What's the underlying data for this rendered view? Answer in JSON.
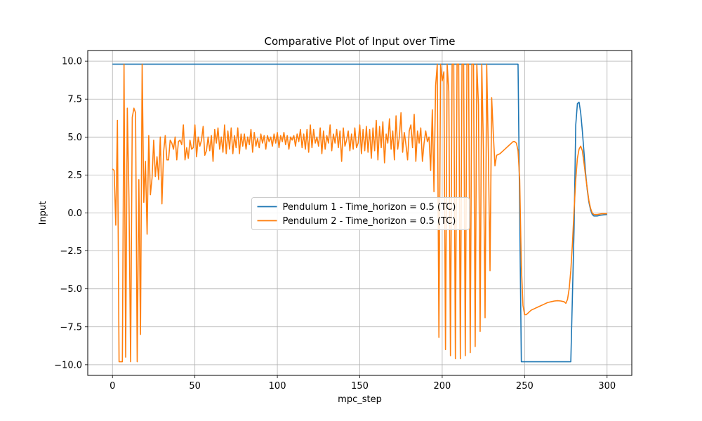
{
  "chart_data": {
    "type": "line",
    "title": "Comparative Plot of Input over Time",
    "xlabel": "mpc_step",
    "ylabel": "Input",
    "xlim": [
      -15,
      315
    ],
    "ylim": [
      -10.7,
      10.7
    ],
    "xticks": [
      0,
      50,
      100,
      150,
      200,
      250,
      300
    ],
    "xtick_labels": [
      "0",
      "50",
      "100",
      "150",
      "200",
      "250",
      "300"
    ],
    "yticks": [
      -10.0,
      -7.5,
      -5.0,
      -2.5,
      0.0,
      2.5,
      5.0,
      7.5,
      10.0
    ],
    "ytick_labels": [
      "−10.0",
      "−7.5",
      "−5.0",
      "−2.5",
      "0.0",
      "2.5",
      "5.0",
      "7.5",
      "10.0"
    ],
    "grid": true,
    "legend_position": "center",
    "series": [
      {
        "name": "Pendulum 1 - Time_horizon = 0.5 (TC)",
        "color": "#1f77b4",
        "points": [
          [
            0,
            9.8
          ],
          [
            246,
            9.8
          ],
          [
            248,
            -9.8
          ],
          [
            278,
            -9.8
          ],
          [
            280,
            -1.0
          ],
          [
            281,
            5.8
          ],
          [
            282,
            7.2
          ],
          [
            283,
            7.3
          ],
          [
            284,
            6.6
          ],
          [
            285,
            5.4
          ],
          [
            286,
            4.0
          ],
          [
            287,
            2.6
          ],
          [
            288,
            1.5
          ],
          [
            289,
            0.7
          ],
          [
            290,
            0.2
          ],
          [
            291,
            -0.1
          ],
          [
            292,
            -0.2
          ],
          [
            294,
            -0.2
          ],
          [
            296,
            -0.15
          ],
          [
            300,
            -0.1
          ]
        ]
      },
      {
        "name": "Pendulum 2 - Time_horizon = 0.5 (TC)",
        "color": "#ff7f0e",
        "points": [
          [
            0,
            2.9
          ],
          [
            1,
            2.8
          ],
          [
            2,
            -0.8
          ],
          [
            3,
            6.1
          ],
          [
            4,
            -9.8
          ],
          [
            5,
            -9.8
          ],
          [
            6,
            -9.8
          ],
          [
            7,
            9.8
          ],
          [
            8,
            -9.5
          ],
          [
            9,
            6.9
          ],
          [
            10,
            1.0
          ],
          [
            11,
            -9.8
          ],
          [
            12,
            6.3
          ],
          [
            13,
            6.9
          ],
          [
            14,
            6.6
          ],
          [
            15,
            -9.8
          ],
          [
            16,
            2.2
          ],
          [
            17,
            -8.0
          ],
          [
            18,
            9.8
          ],
          [
            19,
            0.7
          ],
          [
            20,
            3.4
          ],
          [
            21,
            -1.4
          ],
          [
            22,
            5.1
          ],
          [
            23,
            1.2
          ],
          [
            24,
            2.3
          ],
          [
            25,
            4.8
          ],
          [
            26,
            2.4
          ],
          [
            27,
            3.7
          ],
          [
            28,
            2.2
          ],
          [
            29,
            5.0
          ],
          [
            30,
            0.6
          ],
          [
            31,
            4.0
          ],
          [
            32,
            5.1
          ],
          [
            33,
            3.5
          ],
          [
            34,
            3.5
          ],
          [
            35,
            4.8
          ],
          [
            36,
            4.6
          ],
          [
            37,
            4.2
          ],
          [
            38,
            5.0
          ],
          [
            39,
            3.5
          ],
          [
            40,
            4.7
          ],
          [
            41,
            4.8
          ],
          [
            42,
            4.5
          ],
          [
            43,
            5.8
          ],
          [
            44,
            3.5
          ],
          [
            45,
            4.3
          ],
          [
            46,
            3.6
          ],
          [
            47,
            4.8
          ],
          [
            48,
            4.2
          ],
          [
            49,
            4.3
          ],
          [
            50,
            5.8
          ],
          [
            51,
            3.7
          ],
          [
            52,
            5.0
          ],
          [
            53,
            4.4
          ],
          [
            54,
            4.8
          ],
          [
            55,
            5.7
          ],
          [
            56,
            3.8
          ],
          [
            57,
            4.1
          ],
          [
            58,
            5.0
          ],
          [
            59,
            4.1
          ],
          [
            60,
            5.1
          ],
          [
            61,
            3.4
          ],
          [
            62,
            5.5
          ],
          [
            63,
            4.6
          ],
          [
            64,
            5.6
          ],
          [
            65,
            4.2
          ],
          [
            66,
            5.0
          ],
          [
            67,
            4.0
          ],
          [
            68,
            5.8
          ],
          [
            69,
            3.9
          ],
          [
            70,
            5.4
          ],
          [
            71,
            4.2
          ],
          [
            72,
            5.6
          ],
          [
            73,
            3.9
          ],
          [
            74,
            5.1
          ],
          [
            75,
            4.3
          ],
          [
            76,
            5.6
          ],
          [
            77,
            3.9
          ],
          [
            78,
            5.2
          ],
          [
            79,
            4.4
          ],
          [
            80,
            5.2
          ],
          [
            81,
            4.2
          ],
          [
            82,
            5.0
          ],
          [
            83,
            4.5
          ],
          [
            84,
            5.5
          ],
          [
            85,
            4.0
          ],
          [
            86,
            5.3
          ],
          [
            87,
            4.4
          ],
          [
            88,
            4.9
          ],
          [
            89,
            4.3
          ],
          [
            90,
            5.2
          ],
          [
            91,
            4.6
          ],
          [
            92,
            5.1
          ],
          [
            93,
            4.2
          ],
          [
            94,
            5.1
          ],
          [
            95,
            4.7
          ],
          [
            96,
            5.0
          ],
          [
            97,
            4.4
          ],
          [
            98,
            5.2
          ],
          [
            99,
            4.6
          ],
          [
            100,
            5.3
          ],
          [
            101,
            4.3
          ],
          [
            102,
            5.1
          ],
          [
            103,
            4.7
          ],
          [
            104,
            5.3
          ],
          [
            105,
            4.5
          ],
          [
            106,
            5.1
          ],
          [
            107,
            4.2
          ],
          [
            108,
            5.0
          ],
          [
            109,
            4.8
          ],
          [
            110,
            5.1
          ],
          [
            111,
            4.4
          ],
          [
            112,
            5.2
          ],
          [
            113,
            4.7
          ],
          [
            114,
            5.5
          ],
          [
            115,
            4.3
          ],
          [
            116,
            5.2
          ],
          [
            117,
            4.2
          ],
          [
            118,
            5.5
          ],
          [
            119,
            4.0
          ],
          [
            120,
            5.8
          ],
          [
            121,
            4.3
          ],
          [
            122,
            5.5
          ],
          [
            123,
            4.6
          ],
          [
            124,
            5.0
          ],
          [
            125,
            4.4
          ],
          [
            126,
            5.6
          ],
          [
            127,
            3.9
          ],
          [
            128,
            5.4
          ],
          [
            129,
            4.2
          ],
          [
            130,
            5.1
          ],
          [
            131,
            4.6
          ],
          [
            132,
            5.8
          ],
          [
            133,
            4.1
          ],
          [
            134,
            5.2
          ],
          [
            135,
            4.6
          ],
          [
            136,
            5.5
          ],
          [
            137,
            4.3
          ],
          [
            138,
            5.4
          ],
          [
            139,
            3.4
          ],
          [
            140,
            5.6
          ],
          [
            141,
            4.4
          ],
          [
            142,
            4.8
          ],
          [
            143,
            5.4
          ],
          [
            144,
            4.1
          ],
          [
            145,
            5.2
          ],
          [
            146,
            4.2
          ],
          [
            147,
            5.6
          ],
          [
            148,
            4.3
          ],
          [
            149,
            4.6
          ],
          [
            150,
            5.8
          ],
          [
            151,
            3.9
          ],
          [
            152,
            5.5
          ],
          [
            153,
            4.1
          ],
          [
            154,
            5.7
          ],
          [
            155,
            4.0
          ],
          [
            156,
            5.5
          ],
          [
            157,
            3.6
          ],
          [
            158,
            5.6
          ],
          [
            159,
            4.1
          ],
          [
            160,
            6.1
          ],
          [
            161,
            3.5
          ],
          [
            162,
            5.7
          ],
          [
            163,
            4.3
          ],
          [
            164,
            6.0
          ],
          [
            165,
            3.3
          ],
          [
            166,
            5.2
          ],
          [
            167,
            4.6
          ],
          [
            168,
            6.2
          ],
          [
            169,
            4.2
          ],
          [
            170,
            5.4
          ],
          [
            171,
            3.5
          ],
          [
            172,
            6.4
          ],
          [
            173,
            4.2
          ],
          [
            174,
            5.0
          ],
          [
            175,
            6.6
          ],
          [
            176,
            4.0
          ],
          [
            177,
            5.3
          ],
          [
            178,
            4.5
          ],
          [
            179,
            3.5
          ],
          [
            180,
            5.4
          ],
          [
            181,
            5.8
          ],
          [
            182,
            4.3
          ],
          [
            183,
            6.5
          ],
          [
            184,
            3.4
          ],
          [
            185,
            5.4
          ],
          [
            186,
            4.6
          ],
          [
            187,
            5.6
          ],
          [
            188,
            3.4
          ],
          [
            189,
            4.6
          ],
          [
            190,
            5.4
          ],
          [
            191,
            4.7
          ],
          [
            192,
            5.0
          ],
          [
            193,
            2.8
          ],
          [
            194,
            6.8
          ],
          [
            195,
            1.4
          ],
          [
            196,
            8.4
          ],
          [
            197,
            9.8
          ],
          [
            198,
            -8.2
          ],
          [
            199,
            9.8
          ],
          [
            200,
            8.7
          ],
          [
            201,
            9.3
          ],
          [
            202,
            -9.0
          ],
          [
            203,
            9.8
          ],
          [
            204,
            8.0
          ],
          [
            205,
            -9.4
          ],
          [
            206,
            9.8
          ],
          [
            207,
            9.8
          ],
          [
            208,
            -9.6
          ],
          [
            209,
            9.8
          ],
          [
            210,
            9.8
          ],
          [
            211,
            -9.6
          ],
          [
            212,
            9.8
          ],
          [
            213,
            9.8
          ],
          [
            214,
            -9.4
          ],
          [
            215,
            9.8
          ],
          [
            216,
            9.8
          ],
          [
            217,
            -9.2
          ],
          [
            218,
            9.8
          ],
          [
            219,
            9.8
          ],
          [
            220,
            -8.8
          ],
          [
            221,
            9.8
          ],
          [
            222,
            7.1
          ],
          [
            223,
            -7.8
          ],
          [
            224,
            9.8
          ],
          [
            225,
            4.2
          ],
          [
            226,
            -6.9
          ],
          [
            227,
            9.8
          ],
          [
            228,
            4.0
          ],
          [
            229,
            -3.8
          ],
          [
            230,
            7.6
          ],
          [
            231,
            5.2
          ],
          [
            232,
            3.1
          ],
          [
            233,
            3.8
          ],
          [
            235,
            3.9
          ],
          [
            237,
            4.1
          ],
          [
            239,
            4.3
          ],
          [
            241,
            4.5
          ],
          [
            243,
            4.7
          ],
          [
            244,
            4.7
          ],
          [
            245,
            4.6
          ],
          [
            246,
            4.1
          ],
          [
            247,
            2.2
          ],
          [
            248,
            -3.5
          ],
          [
            249,
            -6.1
          ],
          [
            250,
            -6.7
          ],
          [
            251,
            -6.7
          ],
          [
            252,
            -6.6
          ],
          [
            254,
            -6.4
          ],
          [
            256,
            -6.3
          ],
          [
            258,
            -6.2
          ],
          [
            260,
            -6.1
          ],
          [
            262,
            -6.0
          ],
          [
            264,
            -5.9
          ],
          [
            266,
            -5.85
          ],
          [
            268,
            -5.8
          ],
          [
            270,
            -5.78
          ],
          [
            272,
            -5.8
          ],
          [
            274,
            -5.85
          ],
          [
            275,
            -5.95
          ],
          [
            276,
            -5.7
          ],
          [
            277,
            -5.0
          ],
          [
            278,
            -3.8
          ],
          [
            279,
            -2.0
          ],
          [
            280,
            0.2
          ],
          [
            281,
            2.2
          ],
          [
            282,
            3.6
          ],
          [
            283,
            4.2
          ],
          [
            284,
            4.4
          ],
          [
            285,
            4.1
          ],
          [
            286,
            3.3
          ],
          [
            287,
            2.4
          ],
          [
            288,
            1.6
          ],
          [
            289,
            0.8
          ],
          [
            290,
            0.3
          ],
          [
            291,
            0.0
          ],
          [
            292,
            -0.1
          ],
          [
            294,
            -0.1
          ],
          [
            297,
            -0.05
          ],
          [
            300,
            -0.05
          ]
        ]
      }
    ]
  }
}
